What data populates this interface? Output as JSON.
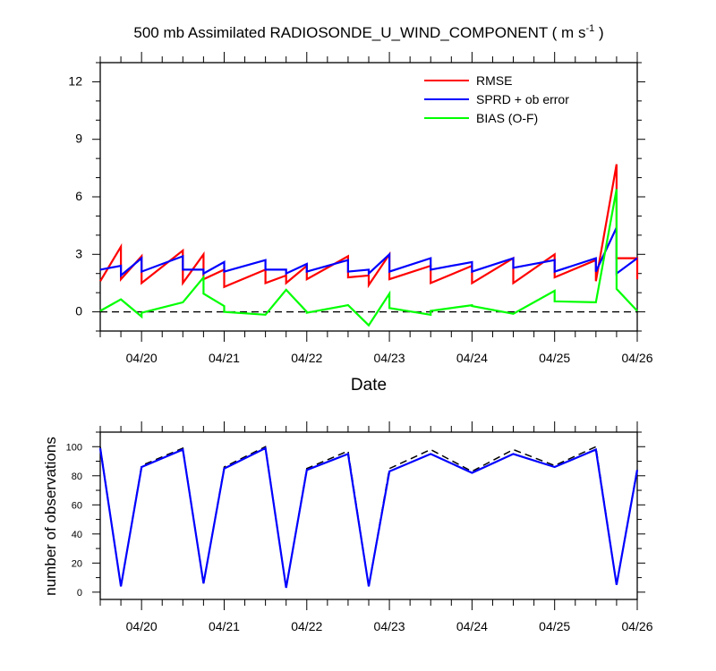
{
  "chart_data": [
    {
      "type": "line",
      "title": "500 mb Assimilated RADIOSONDE_U_WIND_COMPONENT ( m s",
      "title_unit_superscript": "-1",
      "title_end": " )",
      "xlabel": "Date",
      "ylabel": "",
      "x_domain": [
        "2021-04-19T12:00",
        "2021-04-26T00:00"
      ],
      "xticks": [
        {
          "label": "04/20",
          "x": "2021-04-20T00:00"
        },
        {
          "label": "04/21",
          "x": "2021-04-21T00:00"
        },
        {
          "label": "04/22",
          "x": "2021-04-22T00:00"
        },
        {
          "label": "04/23",
          "x": "2021-04-23T00:00"
        },
        {
          "label": "04/24",
          "x": "2021-04-24T00:00"
        },
        {
          "label": "04/25",
          "x": "2021-04-25T00:00"
        },
        {
          "label": "04/26",
          "x": "2021-04-26T00:00"
        }
      ],
      "ylim": [
        -1,
        13
      ],
      "yticks": [
        0,
        3,
        6,
        9,
        12
      ],
      "yticklabels": [
        "0",
        "3",
        "6",
        "9",
        "12"
      ],
      "reference_line": 0,
      "legend_position": "top-right",
      "series": [
        {
          "name": "RMSE",
          "color": "#ff0000",
          "points": [
            [
              "2021-04-19T12:00",
              1.6
            ],
            [
              "2021-04-19T18:00",
              3.4
            ],
            [
              "2021-04-19T18:00",
              1.7
            ],
            [
              "2021-04-20T00:00",
              2.9
            ],
            [
              "2021-04-20T00:00",
              1.5
            ],
            [
              "2021-04-20T12:00",
              3.2
            ],
            [
              "2021-04-20T12:00",
              1.5
            ],
            [
              "2021-04-20T18:00",
              3.0
            ],
            [
              "2021-04-20T18:00",
              1.7
            ],
            [
              "2021-04-21T00:00",
              2.2
            ],
            [
              "2021-04-21T00:00",
              1.3
            ],
            [
              "2021-04-21T12:00",
              2.2
            ],
            [
              "2021-04-21T12:00",
              1.5
            ],
            [
              "2021-04-21T18:00",
              1.9
            ],
            [
              "2021-04-21T18:00",
              1.5
            ],
            [
              "2021-04-22T00:00",
              2.4
            ],
            [
              "2021-04-22T00:00",
              1.7
            ],
            [
              "2021-04-22T12:00",
              2.9
            ],
            [
              "2021-04-22T12:00",
              1.8
            ],
            [
              "2021-04-22T18:00",
              1.9
            ],
            [
              "2021-04-22T18:00",
              1.4
            ],
            [
              "2021-04-23T00:00",
              3.0
            ],
            [
              "2021-04-23T00:00",
              1.7
            ],
            [
              "2021-04-23T12:00",
              2.4
            ],
            [
              "2021-04-23T12:00",
              1.5
            ],
            [
              "2021-04-24T00:00",
              2.4
            ],
            [
              "2021-04-24T00:00",
              1.5
            ],
            [
              "2021-04-24T12:00",
              2.8
            ],
            [
              "2021-04-24T12:00",
              1.5
            ],
            [
              "2021-04-25T00:00",
              3.0
            ],
            [
              "2021-04-25T00:00",
              1.8
            ],
            [
              "2021-04-25T12:00",
              2.7
            ],
            [
              "2021-04-25T12:00",
              1.6
            ],
            [
              "2021-04-25T18:00",
              7.7
            ],
            [
              "2021-04-25T18:00",
              2.8
            ],
            [
              "2021-04-26T00:00",
              2.8
            ],
            [
              "2021-04-26T00:00",
              1.7
            ]
          ]
        },
        {
          "name": "SPRD + ob error",
          "color": "#0000ff",
          "points": [
            [
              "2021-04-19T12:00",
              2.2
            ],
            [
              "2021-04-19T18:00",
              2.4
            ],
            [
              "2021-04-19T18:00",
              1.9
            ],
            [
              "2021-04-20T00:00",
              2.8
            ],
            [
              "2021-04-20T00:00",
              2.1
            ],
            [
              "2021-04-20T12:00",
              2.9
            ],
            [
              "2021-04-20T12:00",
              2.2
            ],
            [
              "2021-04-20T18:00",
              2.2
            ],
            [
              "2021-04-20T18:00",
              2.0
            ],
            [
              "2021-04-21T00:00",
              2.6
            ],
            [
              "2021-04-21T00:00",
              2.1
            ],
            [
              "2021-04-21T12:00",
              2.7
            ],
            [
              "2021-04-21T12:00",
              2.2
            ],
            [
              "2021-04-21T18:00",
              2.2
            ],
            [
              "2021-04-21T18:00",
              2.0
            ],
            [
              "2021-04-22T00:00",
              2.5
            ],
            [
              "2021-04-22T00:00",
              2.1
            ],
            [
              "2021-04-22T12:00",
              2.7
            ],
            [
              "2021-04-22T12:00",
              2.1
            ],
            [
              "2021-04-22T18:00",
              2.2
            ],
            [
              "2021-04-22T18:00",
              2.0
            ],
            [
              "2021-04-23T00:00",
              3.0
            ],
            [
              "2021-04-23T00:00",
              2.1
            ],
            [
              "2021-04-23T12:00",
              2.8
            ],
            [
              "2021-04-23T12:00",
              2.2
            ],
            [
              "2021-04-24T00:00",
              2.6
            ],
            [
              "2021-04-24T00:00",
              2.1
            ],
            [
              "2021-04-24T12:00",
              2.8
            ],
            [
              "2021-04-24T12:00",
              2.3
            ],
            [
              "2021-04-25T00:00",
              2.7
            ],
            [
              "2021-04-25T00:00",
              2.1
            ],
            [
              "2021-04-25T12:00",
              2.8
            ],
            [
              "2021-04-25T12:00",
              2.1
            ],
            [
              "2021-04-25T18:00",
              4.4
            ],
            [
              "2021-04-25T18:00",
              2.0
            ],
            [
              "2021-04-26T00:00",
              2.8
            ]
          ]
        },
        {
          "name": "BIAS (O-F)",
          "color": "#00ff00",
          "points": [
            [
              "2021-04-19T12:00",
              0.05
            ],
            [
              "2021-04-19T18:00",
              0.65
            ],
            [
              "2021-04-20T00:00",
              -0.25
            ],
            [
              "2021-04-20T00:00",
              -0.05
            ],
            [
              "2021-04-20T12:00",
              0.5
            ],
            [
              "2021-04-20T18:00",
              1.8
            ],
            [
              "2021-04-20T18:00",
              0.95
            ],
            [
              "2021-04-21T00:00",
              0.3
            ],
            [
              "2021-04-21T00:00",
              0.0
            ],
            [
              "2021-04-21T12:00",
              -0.15
            ],
            [
              "2021-04-21T18:00",
              1.15
            ],
            [
              "2021-04-22T00:00",
              0.0
            ],
            [
              "2021-04-22T00:00",
              -0.05
            ],
            [
              "2021-04-22T12:00",
              0.35
            ],
            [
              "2021-04-22T18:00",
              -0.7
            ],
            [
              "2021-04-23T00:00",
              0.95
            ],
            [
              "2021-04-23T00:00",
              0.2
            ],
            [
              "2021-04-23T12:00",
              -0.15
            ],
            [
              "2021-04-23T12:00",
              0.05
            ],
            [
              "2021-04-24T00:00",
              0.35
            ],
            [
              "2021-04-24T00:00",
              0.3
            ],
            [
              "2021-04-24T12:00",
              -0.1
            ],
            [
              "2021-04-25T00:00",
              1.1
            ],
            [
              "2021-04-25T00:00",
              0.55
            ],
            [
              "2021-04-25T12:00",
              0.5
            ],
            [
              "2021-04-25T18:00",
              6.4
            ],
            [
              "2021-04-25T18:00",
              1.2
            ],
            [
              "2021-04-26T00:00",
              0.05
            ]
          ]
        }
      ]
    },
    {
      "type": "line",
      "title": "",
      "xlabel": "",
      "ylabel": "number of observations",
      "x_domain": [
        "2021-04-19T12:00",
        "2021-04-26T00:00"
      ],
      "xticks": [
        {
          "label": "04/20",
          "x": "2021-04-20T00:00"
        },
        {
          "label": "04/21",
          "x": "2021-04-21T00:00"
        },
        {
          "label": "04/22",
          "x": "2021-04-22T00:00"
        },
        {
          "label": "04/23",
          "x": "2021-04-23T00:00"
        },
        {
          "label": "04/24",
          "x": "2021-04-24T00:00"
        },
        {
          "label": "04/25",
          "x": "2021-04-25T00:00"
        },
        {
          "label": "04/26",
          "x": "2021-04-26T00:00"
        }
      ],
      "ylim": [
        -5,
        110
      ],
      "yticks": [
        0,
        20,
        40,
        60,
        80,
        100
      ],
      "yticklabels": [
        "0",
        "20",
        "40",
        "60",
        "80",
        "100"
      ],
      "series": [
        {
          "style": "dashed",
          "color": "#000000",
          "points": [
            [
              "2021-04-19T12:00",
              100
            ],
            [
              "2021-04-19T18:00",
              4
            ],
            [
              "2021-04-20T00:00",
              87
            ],
            [
              "2021-04-20T12:00",
              99
            ],
            [
              "2021-04-20T18:00",
              6
            ],
            [
              "2021-04-21T00:00",
              86
            ],
            [
              "2021-04-21T12:00",
              100
            ],
            [
              "2021-04-21T18:00",
              3
            ],
            [
              "2021-04-22T00:00",
              85
            ],
            [
              "2021-04-22T12:00",
              97
            ],
            [
              "2021-04-22T18:00",
              4
            ],
            [
              "2021-04-23T00:00",
              85
            ],
            [
              "2021-04-23T12:00",
              98
            ],
            [
              "2021-04-24T00:00",
              83
            ],
            [
              "2021-04-24T12:00",
              98
            ],
            [
              "2021-04-25T00:00",
              87
            ],
            [
              "2021-04-25T12:00",
              100
            ],
            [
              "2021-04-25T18:00",
              5
            ],
            [
              "2021-04-26T00:00",
              85
            ]
          ]
        },
        {
          "style": "solid",
          "color": "#0000ff",
          "points": [
            [
              "2021-04-19T12:00",
              99
            ],
            [
              "2021-04-19T18:00",
              4
            ],
            [
              "2021-04-20T00:00",
              86
            ],
            [
              "2021-04-20T12:00",
              98
            ],
            [
              "2021-04-20T18:00",
              6
            ],
            [
              "2021-04-21T00:00",
              85
            ],
            [
              "2021-04-21T12:00",
              99
            ],
            [
              "2021-04-21T18:00",
              3
            ],
            [
              "2021-04-22T00:00",
              84
            ],
            [
              "2021-04-22T12:00",
              95
            ],
            [
              "2021-04-22T18:00",
              4
            ],
            [
              "2021-04-23T00:00",
              83
            ],
            [
              "2021-04-23T12:00",
              95
            ],
            [
              "2021-04-24T00:00",
              82
            ],
            [
              "2021-04-24T12:00",
              95
            ],
            [
              "2021-04-25T00:00",
              86
            ],
            [
              "2021-04-25T12:00",
              98
            ],
            [
              "2021-04-25T18:00",
              5
            ],
            [
              "2021-04-26T00:00",
              84
            ]
          ]
        }
      ]
    }
  ]
}
